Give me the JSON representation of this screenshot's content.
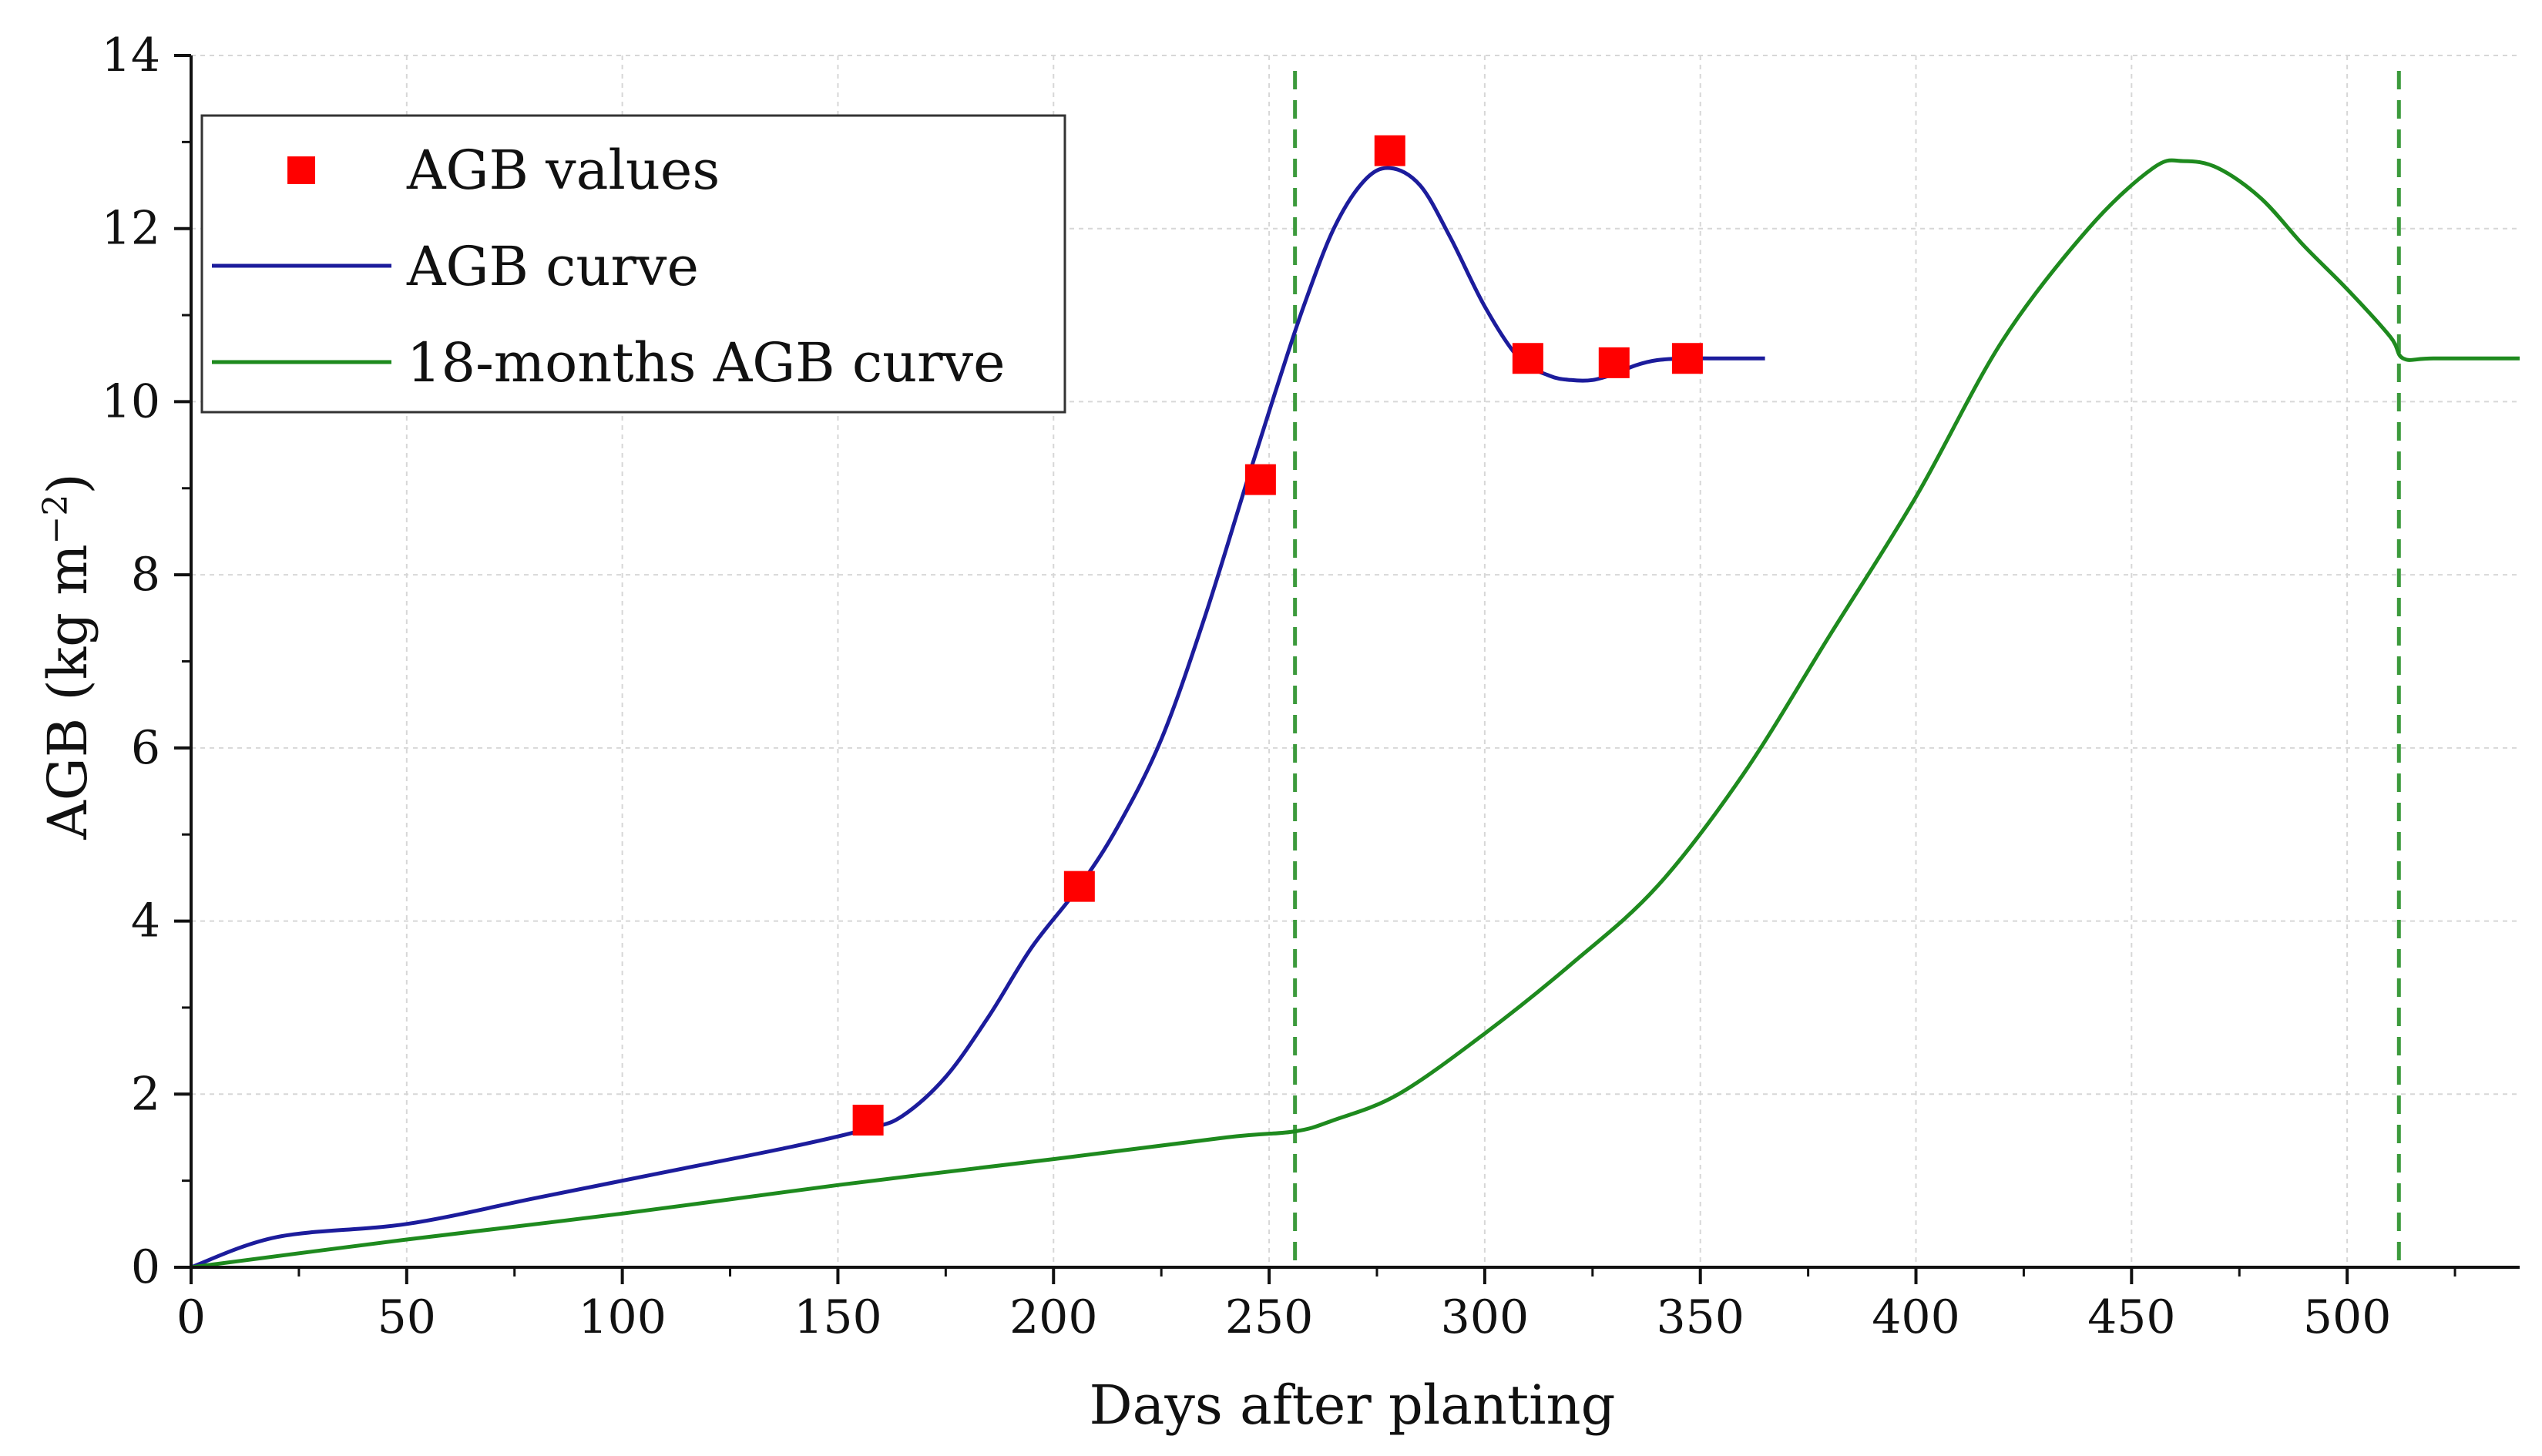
{
  "chart_data": {
    "type": "line",
    "xlabel": "Days after planting",
    "ylabel_main": "AGB (kg m",
    "ylabel_sup": "−2",
    "ylabel_close": ")",
    "xlim": [
      0,
      540
    ],
    "ylim": [
      0,
      14
    ],
    "xticks": [
      0,
      50,
      100,
      150,
      200,
      250,
      300,
      350,
      400,
      450,
      500
    ],
    "xtick_labels": [
      "0",
      "50",
      "100",
      "150",
      "200",
      "250",
      "300",
      "350",
      "400",
      "450",
      "500"
    ],
    "yticks": [
      0,
      2,
      4,
      6,
      8,
      10,
      12,
      14
    ],
    "ytick_labels": [
      "0",
      "2",
      "4",
      "6",
      "8",
      "10",
      "12",
      "14"
    ],
    "grid": true,
    "legend_position": "top-left",
    "series": [
      {
        "name": "AGB values",
        "kind": "scatter",
        "color": "#ff0000",
        "x": [
          157,
          206,
          248,
          278,
          310,
          330,
          347
        ],
        "y": [
          1.7,
          4.4,
          9.1,
          12.9,
          10.5,
          10.45,
          10.5
        ]
      },
      {
        "name": "AGB curve",
        "kind": "line",
        "color": "#1c1c9c",
        "x": [
          0,
          20,
          50,
          80,
          110,
          140,
          157,
          165,
          175,
          185,
          195,
          206,
          215,
          225,
          235,
          245,
          252,
          258,
          265,
          272,
          278,
          285,
          292,
          300,
          308,
          315,
          320,
          325,
          330,
          335,
          340,
          347,
          355,
          365
        ],
        "y": [
          0,
          0.35,
          0.5,
          0.8,
          1.1,
          1.4,
          1.6,
          1.75,
          2.2,
          2.9,
          3.7,
          4.4,
          5.1,
          6.1,
          7.5,
          9.1,
          10.2,
          11.1,
          12.0,
          12.55,
          12.7,
          12.5,
          11.9,
          11.1,
          10.5,
          10.3,
          10.25,
          10.25,
          10.32,
          10.42,
          10.48,
          10.5,
          10.5,
          10.5
        ]
      },
      {
        "name": "18-months AGB curve",
        "kind": "line",
        "color": "#1e8a1e",
        "x": [
          0,
          50,
          100,
          150,
          200,
          240,
          256,
          265,
          280,
          300,
          320,
          340,
          360,
          380,
          400,
          420,
          440,
          455,
          462,
          470,
          480,
          490,
          500,
          510,
          513,
          520,
          540
        ],
        "y": [
          0,
          0.32,
          0.62,
          0.95,
          1.25,
          1.5,
          1.57,
          1.7,
          2.0,
          2.7,
          3.5,
          4.4,
          5.7,
          7.3,
          8.9,
          10.7,
          12.0,
          12.7,
          12.78,
          12.7,
          12.35,
          11.8,
          11.3,
          10.75,
          10.5,
          10.5,
          10.5
        ]
      }
    ],
    "vlines": [
      {
        "x": 256,
        "color": "#3c9a3c",
        "style": "dashed"
      },
      {
        "x": 512,
        "color": "#3c9a3c",
        "style": "dashed"
      }
    ]
  },
  "legend": {
    "items": [
      {
        "label": "AGB values",
        "marker": "square",
        "color": "#ff0000"
      },
      {
        "label": "AGB curve",
        "marker": "line",
        "color": "#1c1c9c"
      },
      {
        "label": "18-months AGB curve",
        "marker": "line",
        "color": "#1e8a1e"
      }
    ]
  }
}
